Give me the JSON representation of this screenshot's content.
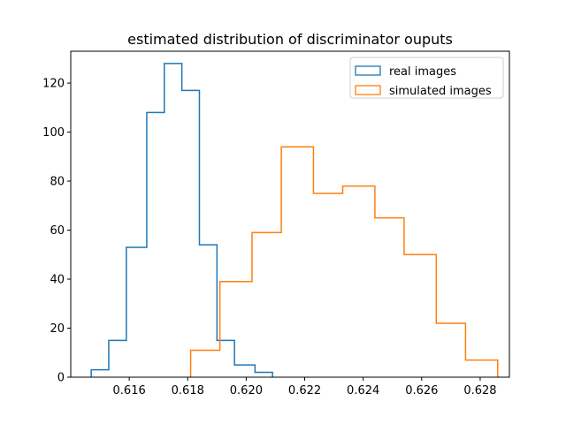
{
  "chart_data": {
    "type": "histogram",
    "title": "estimated distribution of discriminator ouputs",
    "xlabel": "",
    "ylabel": "",
    "xlim": [
      0.614,
      0.629
    ],
    "ylim": [
      0,
      133
    ],
    "x_ticks": [
      {
        "value": 0.616,
        "label": "0.616"
      },
      {
        "value": 0.618,
        "label": "0.618"
      },
      {
        "value": 0.62,
        "label": "0.620"
      },
      {
        "value": 0.622,
        "label": "0.622"
      },
      {
        "value": 0.624,
        "label": "0.624"
      },
      {
        "value": 0.626,
        "label": "0.626"
      },
      {
        "value": 0.628,
        "label": "0.628"
      }
    ],
    "y_ticks": [
      {
        "value": 0,
        "label": "0"
      },
      {
        "value": 20,
        "label": "20"
      },
      {
        "value": 40,
        "label": "40"
      },
      {
        "value": 60,
        "label": "60"
      },
      {
        "value": 80,
        "label": "80"
      },
      {
        "value": 100,
        "label": "100"
      },
      {
        "value": 120,
        "label": "120"
      }
    ],
    "grid": false,
    "legend_position": "top-right",
    "series": [
      {
        "name": "real images",
        "color": "#1f77b4",
        "bin_edges": [
          0.6147,
          0.6153,
          0.6159,
          0.6166,
          0.6172,
          0.6178,
          0.6184,
          0.619,
          0.6196,
          0.6203,
          0.6209
        ],
        "counts": [
          3,
          15,
          53,
          108,
          128,
          117,
          54,
          15,
          5,
          2
        ]
      },
      {
        "name": "simulated images",
        "color": "#ff7f0e",
        "bin_edges": [
          0.6181,
          0.6191,
          0.6202,
          0.6212,
          0.6223,
          0.6233,
          0.6244,
          0.6254,
          0.6265,
          0.6275,
          0.6286
        ],
        "counts": [
          11,
          39,
          59,
          94,
          75,
          78,
          65,
          50,
          22,
          7
        ]
      }
    ]
  }
}
